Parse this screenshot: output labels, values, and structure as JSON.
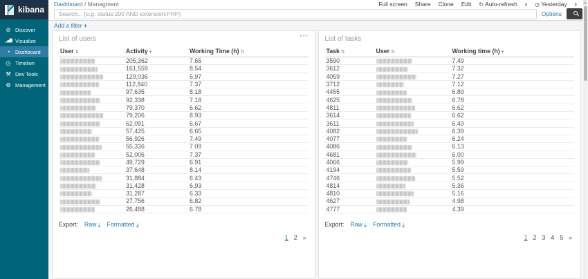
{
  "colors": {
    "accent_link": "#2b79a8",
    "sidebar_bg": "#006578",
    "sidebar_selected_bg": "#2c7ca3",
    "logo_band_bg": "#1d3244",
    "search_button_bg": "#3f3f3f",
    "page_bg": "#f5f5f5",
    "panel_border": "#e2e2e2"
  },
  "app": {
    "logo_text": "kibana",
    "logo_icon": "kibana-logo-icon"
  },
  "topnav": {
    "breadcrumb": {
      "parent": "Dashboard",
      "divider": "/",
      "current": "Managment"
    },
    "actions": [
      {
        "name": "full-screen",
        "label": "Full screen"
      },
      {
        "name": "share",
        "label": "Share"
      },
      {
        "name": "clone",
        "label": "Clone"
      },
      {
        "name": "edit",
        "label": "Edit"
      },
      {
        "name": "auto-refresh",
        "label": "Auto-refresh",
        "icon": "↻",
        "icon_name": "refresh-icon"
      },
      {
        "name": "time-prev",
        "label": "‹",
        "arrow": true,
        "icon_name": "chevron-left-icon"
      },
      {
        "name": "time-picker",
        "label": "Yesterday",
        "icon": "◷",
        "icon_name": "clock-icon"
      },
      {
        "name": "time-next",
        "label": "›",
        "arrow": true,
        "icon_name": "chevron-right-icon"
      }
    ]
  },
  "query_bar": {
    "placeholder": "Search... (e.g. status:200 AND extension:PHP)",
    "value": "",
    "options_label": "Options",
    "search_icon": "magnifier-icon"
  },
  "filter_bar": {
    "add_filter_label": "Add a filter",
    "plus": "+"
  },
  "sidebar": {
    "items": [
      {
        "name": "discover",
        "label": "Discover",
        "icon": "⊘",
        "icon_name": "compass-icon",
        "selected": false
      },
      {
        "name": "visualize",
        "label": "Visualize",
        "icon": "▁▄▇",
        "icon_name": "bar-chart-icon",
        "selected": false
      },
      {
        "name": "dashboard",
        "label": "Dashboard",
        "icon": "◔",
        "icon_name": "gauge-icon",
        "selected": true
      },
      {
        "name": "timelion",
        "label": "Timelion",
        "icon": "◷",
        "icon_name": "clock-icon",
        "selected": false
      },
      {
        "name": "dev-tools",
        "label": "Dev Tools",
        "icon": "⚒",
        "icon_name": "wrench-icon",
        "selected": false
      },
      {
        "name": "management",
        "label": "Management",
        "icon": "⚙",
        "icon_name": "gear-icon",
        "selected": false
      }
    ]
  },
  "panels": [
    {
      "title": "List of users",
      "menu_icon": "ellipsis-icon",
      "menu_glyph": "···",
      "columns": [
        {
          "label": "User",
          "sort": "both"
        },
        {
          "label": "Activity",
          "sort": "desc"
        },
        {
          "label": "Working Time (h)",
          "sort": "both"
        }
      ],
      "rows": [
        [
          null,
          "205,362",
          "7.65"
        ],
        [
          null,
          "161,559",
          "8.54"
        ],
        [
          null,
          "129,036",
          "6.97"
        ],
        [
          null,
          "112,840",
          "7.37"
        ],
        [
          null,
          "97,635",
          "8.18"
        ],
        [
          null,
          "92,338",
          "7.18"
        ],
        [
          null,
          "79,370",
          "6.62"
        ],
        [
          null,
          "79,206",
          "8.93"
        ],
        [
          null,
          "62,091",
          "6.67"
        ],
        [
          null,
          "57,425",
          "6.65"
        ],
        [
          null,
          "56,926",
          "7.49"
        ],
        [
          null,
          "55,336",
          "7.09"
        ],
        [
          null,
          "52,006",
          "7.37"
        ],
        [
          null,
          "49,729",
          "6.91"
        ],
        [
          null,
          "37,648",
          "8.14"
        ],
        [
          null,
          "31,884",
          "6.43"
        ],
        [
          null,
          "31,428",
          "6.93"
        ],
        [
          null,
          "31,287",
          "6.33"
        ],
        [
          null,
          "27,756",
          "6.82"
        ],
        [
          null,
          "26,488",
          "6.78"
        ]
      ],
      "export": {
        "label": "Export:",
        "raw": "Raw",
        "formatted": "Formatted",
        "download_icon": "download-icon"
      },
      "pages": [
        "1",
        "2",
        "»"
      ],
      "active_page": "1"
    },
    {
      "title": "List of tasks",
      "menu_icon": null,
      "menu_glyph": "",
      "columns": [
        {
          "label": "Task",
          "sort": "both"
        },
        {
          "label": "User",
          "sort": "both"
        },
        {
          "label": "Working time (h)",
          "sort": "desc"
        }
      ],
      "rows": [
        [
          "3590",
          null,
          "7.49"
        ],
        [
          "3612",
          null,
          "7.32"
        ],
        [
          "4059",
          null,
          "7.27"
        ],
        [
          "3712",
          null,
          "7.12"
        ],
        [
          "4455",
          null,
          "6.89"
        ],
        [
          "4625",
          null,
          "6.78"
        ],
        [
          "4811",
          null,
          "6.62"
        ],
        [
          "3614",
          null,
          "6.62"
        ],
        [
          "3611",
          null,
          "6.49"
        ],
        [
          "4082",
          null,
          "6.39"
        ],
        [
          "4077",
          null,
          "6.24"
        ],
        [
          "4086",
          null,
          "6.13"
        ],
        [
          "4681",
          null,
          "6.00"
        ],
        [
          "4066",
          null,
          "5.99"
        ],
        [
          "4194",
          null,
          "5.59"
        ],
        [
          "4746",
          null,
          "5.52"
        ],
        [
          "4814",
          null,
          "5.36"
        ],
        [
          "4810",
          null,
          "5.16"
        ],
        [
          "4627",
          null,
          "4.98"
        ],
        [
          "4777",
          null,
          "4.39"
        ]
      ],
      "export": {
        "label": "Export:",
        "raw": "Raw",
        "formatted": "Formatted",
        "download_icon": "download-icon"
      },
      "pages": [
        "1",
        "2",
        "3",
        "4",
        "5",
        "»"
      ],
      "active_page": "1"
    }
  ]
}
